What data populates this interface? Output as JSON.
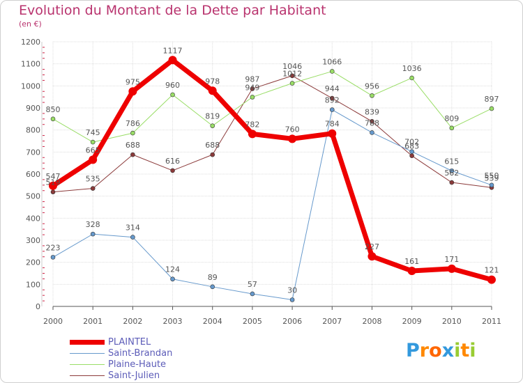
{
  "title": "Evolution du Montant de la Dette par Habitant",
  "subtitle": "(en €)",
  "chart_data": {
    "type": "line",
    "title": "Evolution du Montant de la Dette par Habitant",
    "subtitle": "(en €)",
    "xlabel": "",
    "ylabel": "",
    "ylim": [
      0,
      1200
    ],
    "yticks": [
      0,
      100,
      200,
      300,
      400,
      500,
      600,
      700,
      800,
      900,
      1000,
      1100,
      1200
    ],
    "grid": true,
    "legend_position": "bottom-left",
    "categories": [
      "2000",
      "2001",
      "2002",
      "2003",
      "2004",
      "2005",
      "2006",
      "2007",
      "2008",
      "2009",
      "2010",
      "2011"
    ],
    "series": [
      {
        "name": "Saint-Julien",
        "color": "#8b3a3a",
        "width": 1,
        "values": [
          519,
          535,
          688,
          616,
          688,
          987,
          1046,
          944,
          839,
          683,
          562,
          539
        ]
      },
      {
        "name": "Plaine-Haute",
        "color": "#99dd66",
        "width": 1,
        "values": [
          850,
          745,
          786,
          960,
          819,
          949,
          1012,
          1066,
          956,
          1036,
          809,
          897
        ]
      },
      {
        "name": "Saint-Brandan",
        "color": "#6699cc",
        "width": 1,
        "values": [
          223,
          328,
          314,
          124,
          89,
          57,
          30,
          892,
          788,
          702,
          615,
          550
        ]
      },
      {
        "name": "PLAINTEL",
        "color": "#ee0000",
        "width": 7,
        "values": [
          547,
          665,
          975,
          1117,
          978,
          782,
          760,
          784,
          227,
          161,
          171,
          121
        ]
      }
    ],
    "legend_order": [
      "PLAINTEL",
      "Saint-Brandan",
      "Plaine-Haute",
      "Saint-Julien"
    ]
  },
  "logo": {
    "letters": [
      "P",
      "r",
      "o",
      "x",
      "i",
      "t",
      "i"
    ],
    "colors": [
      "#3399dd",
      "#ff8800",
      "#ff6600",
      "#3399dd",
      "#99cc33",
      "#ff8800",
      "#99cc33"
    ]
  },
  "colors": {
    "title": "#b9336e",
    "grid": "#dddddd",
    "axis": "#555555",
    "legend_text": "#5c5cb8"
  }
}
